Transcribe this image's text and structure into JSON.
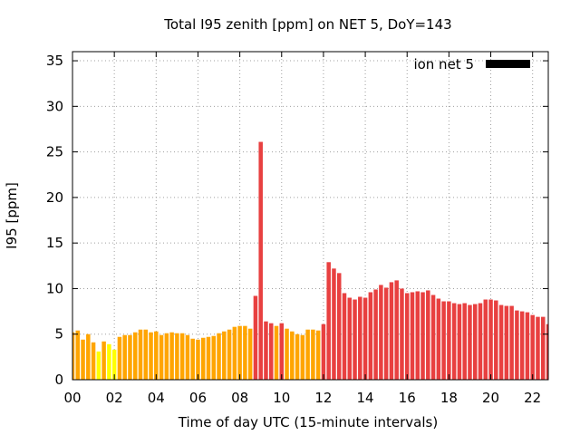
{
  "chart_data": {
    "type": "bar",
    "title": "Total I95 zenith [ppm] on NET 5, DoY=143",
    "xlabel": "Time of day UTC (15-minute intervals)",
    "ylabel": "I95 [ppm]",
    "xlim": [
      0,
      22.75
    ],
    "ylim": [
      0,
      36
    ],
    "xticks": [
      "00",
      "02",
      "04",
      "06",
      "08",
      "10",
      "12",
      "14",
      "16",
      "18",
      "20",
      "22"
    ],
    "yticks": [
      "0",
      "5",
      "10",
      "15",
      "20",
      "25",
      "30",
      "35"
    ],
    "grid": true,
    "legend": {
      "position": "top-right",
      "label": "ion net 5",
      "color": "#000000"
    },
    "bar_interval_hours": 0.25,
    "values": [
      5.2,
      5.4,
      4.4,
      5.0,
      4.1,
      3.1,
      4.2,
      3.9,
      3.3,
      4.7,
      4.9,
      4.9,
      5.2,
      5.5,
      5.5,
      5.2,
      5.3,
      4.9,
      5.1,
      5.2,
      5.1,
      5.1,
      4.9,
      4.5,
      4.4,
      4.6,
      4.7,
      4.8,
      5.1,
      5.3,
      5.5,
      5.8,
      5.9,
      5.9,
      5.6,
      9.2,
      26.1,
      6.4,
      6.2,
      5.9,
      6.2,
      5.6,
      5.3,
      5.0,
      4.9,
      5.5,
      5.5,
      5.4,
      6.1,
      12.9,
      12.2,
      11.7,
      9.5,
      9.0,
      8.8,
      9.1,
      9.0,
      9.6,
      9.9,
      10.4,
      10.1,
      10.7,
      10.9,
      10.0,
      9.5,
      9.6,
      9.7,
      9.6,
      9.8,
      9.3,
      8.9,
      8.6,
      8.6,
      8.4,
      8.3,
      8.4,
      8.2,
      8.3,
      8.4,
      8.8,
      8.8,
      8.7,
      8.2,
      8.1,
      8.1,
      7.6,
      7.5,
      7.4,
      7.1,
      6.9,
      6.9,
      6.1
    ],
    "colors": {
      "yellow": "#ffff00",
      "orange": "#ffa500",
      "red": "#e84040"
    }
  }
}
